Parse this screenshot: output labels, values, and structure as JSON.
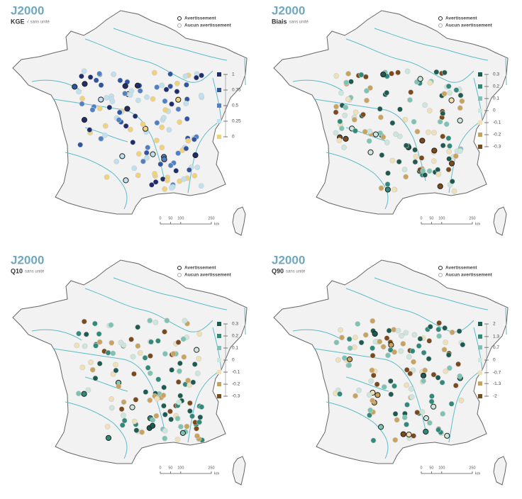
{
  "panels": [
    {
      "title": "J2000",
      "variable": "KGE",
      "unit": "√ sans unité",
      "legend": {
        "warning": "Avertissement",
        "no_warning": "Aucun avertissement"
      },
      "colorbar": {
        "ticks": [
          1,
          0.75,
          0.5,
          0.25,
          0
        ],
        "colors": [
          "#1f2d6b",
          "#2f55a0",
          "#4f80c4",
          "#bfe0ee",
          "#f0d27a"
        ]
      },
      "scale": {
        "ticks": [
          0,
          50,
          100,
          250
        ],
        "unit": "km"
      }
    },
    {
      "title": "J2000",
      "variable": "Biais",
      "unit": "sans unité",
      "legend": {
        "warning": "Avertissement",
        "no_warning": "Aucun avertissement"
      },
      "colorbar": {
        "ticks": [
          0.3,
          0.2,
          0.1,
          0,
          -0.1,
          -0.2,
          -0.3
        ],
        "colors": [
          "#1d5a50",
          "#2f8a7a",
          "#7cc3b3",
          "#cde6dc",
          "#efe0b5",
          "#c9a35e",
          "#7a4a1c"
        ]
      },
      "scale": {
        "ticks": [
          0,
          50,
          100,
          250
        ],
        "unit": "km"
      }
    },
    {
      "title": "J2000",
      "variable": "Q10",
      "unit": "sans unité",
      "legend": {
        "warning": "Avertissement",
        "no_warning": "Aucun avertissement"
      },
      "colorbar": {
        "ticks": [
          0.3,
          0.2,
          0.1,
          0,
          -0.1,
          -0.2,
          -0.3
        ],
        "colors": [
          "#1d5a50",
          "#2f8a7a",
          "#7cc3b3",
          "#cde6dc",
          "#efe0b5",
          "#c9a35e",
          "#7a4a1c"
        ]
      },
      "scale": {
        "ticks": [
          0,
          50,
          100,
          250
        ],
        "unit": "km"
      }
    },
    {
      "title": "J2000",
      "variable": "Q90",
      "unit": "sans unité",
      "legend": {
        "warning": "Avertissement",
        "no_warning": "Aucun avertissement"
      },
      "colorbar": {
        "ticks": [
          2,
          1.3,
          0.7,
          0,
          -0.7,
          -1.3,
          -2
        ],
        "colors": [
          "#1d5a50",
          "#2f8a7a",
          "#7cc3b3",
          "#cde6dc",
          "#efe0b5",
          "#c9a35e",
          "#7a4a1c"
        ]
      },
      "scale": {
        "ticks": [
          0,
          50,
          100,
          250
        ],
        "unit": "km"
      }
    }
  ]
}
